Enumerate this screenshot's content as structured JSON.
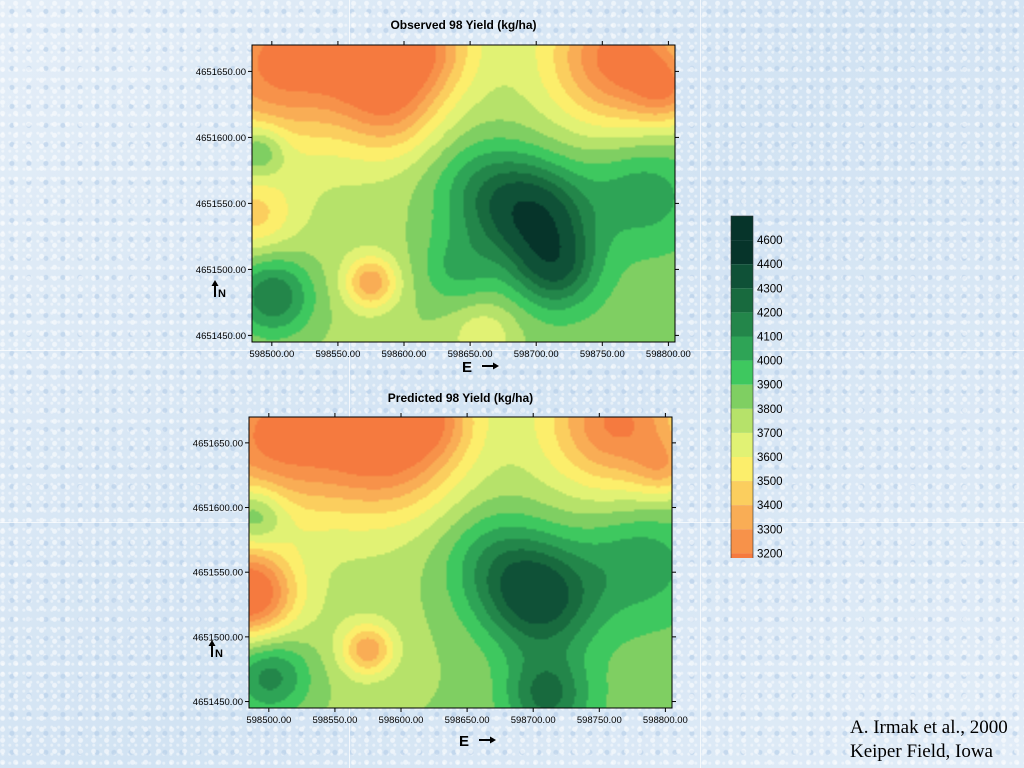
{
  "chart_data": [
    {
      "type": "heatmap",
      "title": "Observed 98 Yield (kg/ha)",
      "xlabel": "E",
      "ylabel": "N",
      "x_ticks": [
        "598500.00",
        "598550.00",
        "598600.00",
        "598650.00",
        "598700.00",
        "598750.00",
        "598800.00"
      ],
      "y_ticks": [
        "4651650.00",
        "4651600.00",
        "4651550.00",
        "4651500.00",
        "4651450.00"
      ],
      "xlim": [
        598485,
        598805
      ],
      "ylim": [
        4651445,
        4651670
      ],
      "colors": [
        "#f57a3f",
        "#f7924a",
        "#f9ad55",
        "#fbce5e",
        "#fcee6b",
        "#e1f274",
        "#b6e26a",
        "#7fcf62",
        "#3ec85f",
        "#2ea456",
        "#23864a",
        "#186a3e",
        "#0f5137",
        "#06342a"
      ],
      "blobs": [
        {
          "x": 598505,
          "y": 4651655,
          "s": 40,
          "a": -500
        },
        {
          "x": 598585,
          "y": 4651660,
          "s": 35,
          "a": -600
        },
        {
          "x": 598620,
          "y": 4651670,
          "s": 25,
          "a": -200
        },
        {
          "x": 598765,
          "y": 4651660,
          "s": 38,
          "a": -650
        },
        {
          "x": 598800,
          "y": 4651635,
          "s": 18,
          "a": -300
        },
        {
          "x": 598590,
          "y": 4651615,
          "s": 25,
          "a": -200
        },
        {
          "x": 598488,
          "y": 4651540,
          "s": 20,
          "a": -250
        },
        {
          "x": 598575,
          "y": 4651490,
          "s": 14,
          "a": -450
        },
        {
          "x": 598660,
          "y": 4651450,
          "s": 18,
          "a": -200
        },
        {
          "x": 598700,
          "y": 4651540,
          "s": 28,
          "a": 550
        },
        {
          "x": 598715,
          "y": 4651500,
          "s": 22,
          "a": 400
        },
        {
          "x": 598660,
          "y": 4651560,
          "s": 30,
          "a": 300
        },
        {
          "x": 598500,
          "y": 4651480,
          "s": 22,
          "a": 450
        },
        {
          "x": 598640,
          "y": 4651500,
          "s": 20,
          "a": 200
        },
        {
          "x": 598490,
          "y": 4651590,
          "s": 14,
          "a": 300
        },
        {
          "x": 598780,
          "y": 4651560,
          "s": 30,
          "a": 250
        }
      ]
    },
    {
      "type": "heatmap",
      "title": "Predicted 98 Yield (kg/ha)",
      "xlabel": "E",
      "ylabel": "N",
      "x_ticks": [
        "598500.00",
        "598550.00",
        "598600.00",
        "598650.00",
        "598700.00",
        "598750.00",
        "598800.00"
      ],
      "y_ticks": [
        "4651650.00",
        "4651600.00",
        "4651550.00",
        "4651500.00",
        "4651450.00"
      ],
      "xlim": [
        598485,
        598805
      ],
      "ylim": [
        4651445,
        4651670
      ],
      "colors": [
        "#f57a3f",
        "#f7924a",
        "#f9ad55",
        "#fbce5e",
        "#fcee6b",
        "#e1f274",
        "#b6e26a",
        "#7fcf62",
        "#3ec85f",
        "#2ea456",
        "#23864a",
        "#186a3e",
        "#0f5137",
        "#06342a"
      ],
      "blobs": [
        {
          "x": 598505,
          "y": 4651655,
          "s": 40,
          "a": -500
        },
        {
          "x": 598590,
          "y": 4651650,
          "s": 38,
          "a": -600
        },
        {
          "x": 598625,
          "y": 4651670,
          "s": 22,
          "a": -250
        },
        {
          "x": 598765,
          "y": 4651665,
          "s": 38,
          "a": -600
        },
        {
          "x": 598800,
          "y": 4651630,
          "s": 16,
          "a": -250
        },
        {
          "x": 598485,
          "y": 4651533,
          "s": 24,
          "a": -700
        },
        {
          "x": 598575,
          "y": 4651490,
          "s": 14,
          "a": -450
        },
        {
          "x": 598705,
          "y": 4651530,
          "s": 30,
          "a": 550
        },
        {
          "x": 598710,
          "y": 4651455,
          "s": 22,
          "a": 400
        },
        {
          "x": 598670,
          "y": 4651560,
          "s": 30,
          "a": 250
        },
        {
          "x": 598500,
          "y": 4651470,
          "s": 22,
          "a": 400
        },
        {
          "x": 598490,
          "y": 4651595,
          "s": 16,
          "a": 300
        },
        {
          "x": 598780,
          "y": 4651560,
          "s": 32,
          "a": 250
        }
      ]
    }
  ],
  "legend": {
    "values": [
      "4600",
      "4400",
      "4300",
      "4200",
      "4100",
      "4000",
      "3900",
      "3800",
      "3700",
      "3600",
      "3500",
      "3400",
      "3300",
      "3200"
    ],
    "colors": [
      "#06342a",
      "#0f5137",
      "#186a3e",
      "#23864a",
      "#2ea456",
      "#3ec85f",
      "#7fcf62",
      "#b6e26a",
      "#e1f274",
      "#fcee6b",
      "#fbce5e",
      "#f9ad55",
      "#f7924a",
      "#f57a3f"
    ]
  },
  "citation": {
    "line1": "A. Irmak et al., 2000",
    "line2": "Keiper Field, Iowa"
  }
}
